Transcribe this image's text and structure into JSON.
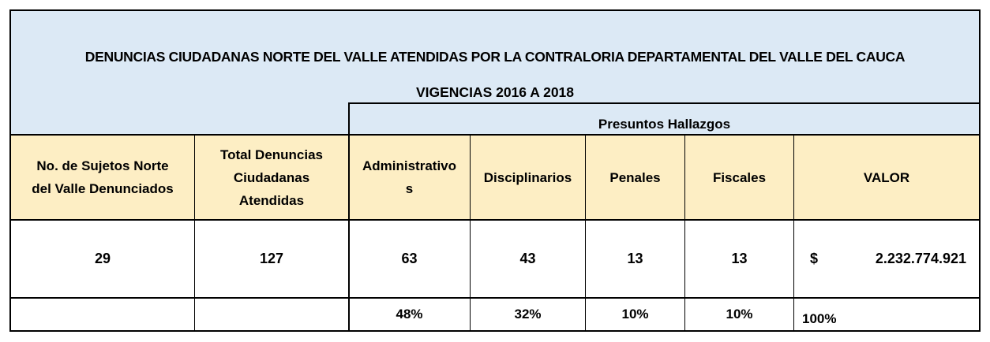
{
  "title": {
    "line1": "DENUNCIAS CIUDADANAS NORTE DEL VALLE ATENDIDAS POR LA CONTRALORIA DEPARTAMENTAL DEL VALLE DEL CAUCA",
    "line2": "VIGENCIAS 2016 A 2018"
  },
  "group_header": "Presuntos Hallazgos",
  "columns": {
    "sujetos_line1": "No. de Sujetos Norte",
    "sujetos_line2": "del Valle Denunciados",
    "total_line1": "Total Denuncias",
    "total_line2": "Ciudadanas",
    "total_line3": "Atendidas",
    "admin_line1": "Administrativo",
    "admin_line2": "s",
    "disciplinarios": "Disciplinarios",
    "penales": "Penales",
    "fiscales": "Fiscales",
    "valor": "VALOR"
  },
  "values": {
    "sujetos": "29",
    "total": "127",
    "administrativos": "63",
    "disciplinarios": "43",
    "penales": "13",
    "fiscales": "13",
    "valor_currency": "$",
    "valor_amount": "2.232.774.921"
  },
  "percentages": {
    "administrativos": "48%",
    "disciplinarios": "32%",
    "penales": "10%",
    "fiscales": "10%",
    "valor": "100%"
  },
  "colors": {
    "title_bg": "#dce9f5",
    "header_bg": "#fdeec4"
  }
}
